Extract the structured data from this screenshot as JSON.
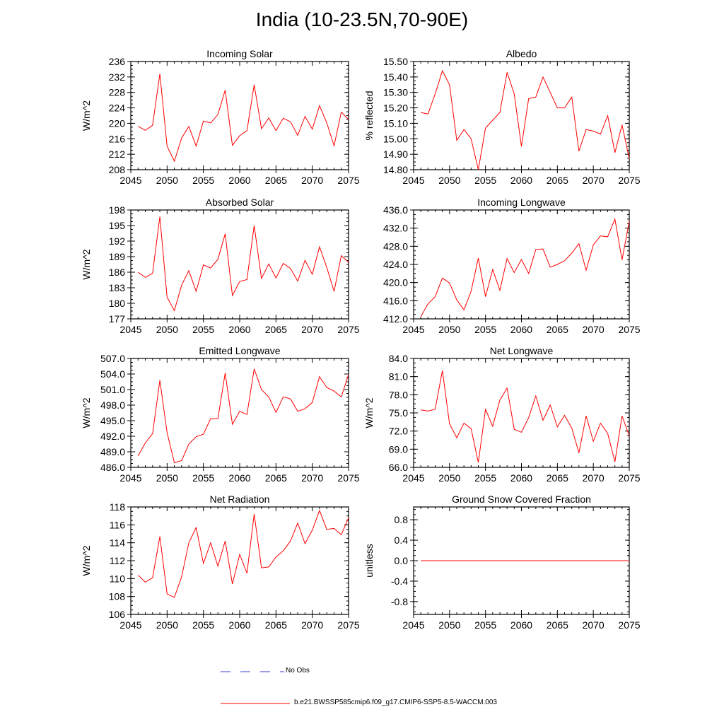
{
  "figure": {
    "title": "India (10-23.5N,70-90E)",
    "legend": [
      {
        "label": "No Obs",
        "color": "#3b3bdb",
        "style": "dashed"
      },
      {
        "label": "b.e21.BWSSP585cmip6.f09_g17.CMIP6-SSP5-8.5-WACCM.003",
        "color": "#ff0000",
        "style": "solid"
      }
    ]
  },
  "chart_data": [
    {
      "type": "line",
      "title": "Incoming Solar",
      "ylabel": "W/m^2",
      "xlim": [
        2045,
        2075
      ],
      "ylim": [
        208,
        236
      ],
      "yticks": [
        "208",
        "212",
        "216",
        "220",
        "224",
        "228",
        "232",
        "236"
      ],
      "xticks": [
        "2045",
        "2050",
        "2055",
        "2060",
        "2065",
        "2070",
        "2075"
      ],
      "grid": false,
      "series": [
        {
          "color": "#ff0000",
          "x": [
            2046,
            2047,
            2048,
            2049,
            2050,
            2051,
            2052,
            2053,
            2054,
            2055,
            2056,
            2057,
            2058,
            2059,
            2060,
            2061,
            2062,
            2063,
            2064,
            2065,
            2066,
            2067,
            2068,
            2069,
            2070,
            2071,
            2072,
            2073,
            2074,
            2075
          ],
          "values": [
            219.2,
            218.2,
            219.5,
            232.8,
            214.1,
            210.2,
            216.2,
            219.2,
            214.1,
            220.6,
            220.1,
            222.3,
            228.6,
            214.3,
            216.8,
            218.1,
            230.0,
            218.6,
            221.4,
            218.1,
            221.3,
            220.4,
            216.9,
            221.8,
            218.5,
            224.6,
            220.1,
            214.2,
            222.9,
            221.0
          ]
        }
      ]
    },
    {
      "type": "line",
      "title": "Albedo",
      "ylabel": "% reflected",
      "xlim": [
        2045,
        2075
      ],
      "ylim": [
        14.8,
        15.5
      ],
      "yticks": [
        "14.80",
        "14.90",
        "15.00",
        "15.10",
        "15.20",
        "15.30",
        "15.40",
        "15.50"
      ],
      "xticks": [
        "2045",
        "2050",
        "2055",
        "2060",
        "2065",
        "2070",
        "2075"
      ],
      "grid": false,
      "series": [
        {
          "color": "#ff0000",
          "x": [
            2046,
            2047,
            2048,
            2049,
            2050,
            2051,
            2052,
            2053,
            2054,
            2055,
            2056,
            2057,
            2058,
            2059,
            2060,
            2061,
            2062,
            2063,
            2064,
            2065,
            2066,
            2067,
            2068,
            2069,
            2070,
            2071,
            2072,
            2073,
            2074,
            2075
          ],
          "values": [
            15.17,
            15.16,
            15.29,
            15.44,
            15.35,
            14.99,
            15.06,
            15.0,
            14.8,
            15.07,
            15.12,
            15.17,
            15.43,
            15.29,
            14.95,
            15.26,
            15.27,
            15.4,
            15.3,
            15.2,
            15.2,
            15.27,
            14.92,
            15.06,
            15.05,
            15.03,
            15.15,
            14.91,
            15.09,
            14.87
          ]
        }
      ]
    },
    {
      "type": "line",
      "title": "Absorbed Solar",
      "ylabel": "W/m^2",
      "xlim": [
        2045,
        2075
      ],
      "ylim": [
        177,
        198
      ],
      "yticks": [
        "177",
        "180",
        "183",
        "186",
        "189",
        "192",
        "195",
        "198"
      ],
      "xticks": [
        "2045",
        "2050",
        "2055",
        "2060",
        "2065",
        "2070",
        "2075"
      ],
      "grid": false,
      "series": [
        {
          "color": "#ff0000",
          "x": [
            2046,
            2047,
            2048,
            2049,
            2050,
            2051,
            2052,
            2053,
            2054,
            2055,
            2056,
            2057,
            2058,
            2059,
            2060,
            2061,
            2062,
            2063,
            2064,
            2065,
            2066,
            2067,
            2068,
            2069,
            2070,
            2071,
            2072,
            2073,
            2074,
            2075
          ],
          "values": [
            186.0,
            185.0,
            185.8,
            196.7,
            181.2,
            178.6,
            183.5,
            186.3,
            182.3,
            187.4,
            186.8,
            188.5,
            193.4,
            181.5,
            184.2,
            184.6,
            195.0,
            184.8,
            187.6,
            184.9,
            187.7,
            186.7,
            184.3,
            188.3,
            185.6,
            190.9,
            186.9,
            182.3,
            189.2,
            187.9
          ]
        }
      ]
    },
    {
      "type": "line",
      "title": "Incoming Longwave",
      "ylabel": "",
      "xlim": [
        2045,
        2075
      ],
      "ylim": [
        412.0,
        436.0
      ],
      "yticks": [
        "412.0",
        "416.0",
        "420.0",
        "424.0",
        "428.0",
        "432.0",
        "436.0"
      ],
      "xticks": [
        "2045",
        "2050",
        "2055",
        "2060",
        "2065",
        "2070",
        "2075"
      ],
      "grid": false,
      "series": [
        {
          "color": "#ff0000",
          "x": [
            2046,
            2047,
            2048,
            2049,
            2050,
            2051,
            2052,
            2053,
            2054,
            2055,
            2056,
            2057,
            2058,
            2059,
            2060,
            2061,
            2062,
            2063,
            2064,
            2065,
            2066,
            2067,
            2068,
            2069,
            2070,
            2071,
            2072,
            2073,
            2074,
            2075
          ],
          "values": [
            412.5,
            415.3,
            416.9,
            421.0,
            419.9,
            416.2,
            414.0,
            418.1,
            425.4,
            416.9,
            422.9,
            418.3,
            425.3,
            422.2,
            425.1,
            422.0,
            427.3,
            427.4,
            423.4,
            424.0,
            424.8,
            426.5,
            428.6,
            422.7,
            428.3,
            430.3,
            430.1,
            434.0,
            425.0,
            433.5
          ]
        }
      ]
    },
    {
      "type": "line",
      "title": "Emitted Longwave",
      "ylabel": "W/m^2",
      "xlim": [
        2045,
        2075
      ],
      "ylim": [
        486.0,
        507.0
      ],
      "yticks": [
        "486.0",
        "489.0",
        "492.0",
        "495.0",
        "498.0",
        "501.0",
        "504.0",
        "507.0"
      ],
      "xticks": [
        "2045",
        "2050",
        "2055",
        "2060",
        "2065",
        "2070",
        "2075"
      ],
      "grid": false,
      "series": [
        {
          "color": "#ff0000",
          "x": [
            2046,
            2047,
            2048,
            2049,
            2050,
            2051,
            2052,
            2053,
            2054,
            2055,
            2056,
            2057,
            2058,
            2059,
            2060,
            2061,
            2062,
            2063,
            2064,
            2065,
            2066,
            2067,
            2068,
            2069,
            2070,
            2071,
            2072,
            2073,
            2074,
            2075
          ],
          "values": [
            488.2,
            490.7,
            492.5,
            502.8,
            492.7,
            486.9,
            487.3,
            490.5,
            491.9,
            492.4,
            495.4,
            495.4,
            504.2,
            494.3,
            496.8,
            496.2,
            505.0,
            501.0,
            499.6,
            496.6,
            499.6,
            499.2,
            496.8,
            497.3,
            498.5,
            503.5,
            501.4,
            500.7,
            499.6,
            503.9
          ]
        }
      ]
    },
    {
      "type": "line",
      "title": "Net Longwave",
      "ylabel": "W/m^2",
      "xlim": [
        2045,
        2075
      ],
      "ylim": [
        66.0,
        84.0
      ],
      "yticks": [
        "66.0",
        "69.0",
        "72.0",
        "75.0",
        "78.0",
        "81.0",
        "84.0"
      ],
      "xticks": [
        "2045",
        "2050",
        "2055",
        "2060",
        "2065",
        "2070",
        "2075"
      ],
      "grid": false,
      "series": [
        {
          "color": "#ff0000",
          "x": [
            2046,
            2047,
            2048,
            2049,
            2050,
            2051,
            2052,
            2053,
            2054,
            2055,
            2056,
            2057,
            2058,
            2059,
            2060,
            2061,
            2062,
            2063,
            2064,
            2065,
            2066,
            2067,
            2068,
            2069,
            2070,
            2071,
            2072,
            2073,
            2074,
            2075
          ],
          "values": [
            75.5,
            75.3,
            75.6,
            82.0,
            73.2,
            70.9,
            73.3,
            72.4,
            66.8,
            75.6,
            72.8,
            77.1,
            79.1,
            72.3,
            71.8,
            74.2,
            77.8,
            73.8,
            76.3,
            72.7,
            74.6,
            72.5,
            68.4,
            74.5,
            70.3,
            73.3,
            71.6,
            66.9,
            74.5,
            71.2
          ]
        }
      ]
    },
    {
      "type": "line",
      "title": "Net Radiation",
      "ylabel": "W/m^2",
      "xlim": [
        2045,
        2075
      ],
      "ylim": [
        106,
        118
      ],
      "yticks": [
        "106",
        "108",
        "110",
        "112",
        "114",
        "116",
        "118"
      ],
      "xticks": [
        "2045",
        "2050",
        "2055",
        "2060",
        "2065",
        "2070",
        "2075"
      ],
      "grid": false,
      "series": [
        {
          "color": "#ff0000",
          "x": [
            2046,
            2047,
            2048,
            2049,
            2050,
            2051,
            2052,
            2053,
            2054,
            2055,
            2056,
            2057,
            2058,
            2059,
            2060,
            2061,
            2062,
            2063,
            2064,
            2065,
            2066,
            2067,
            2068,
            2069,
            2070,
            2071,
            2072,
            2073,
            2074,
            2075
          ],
          "values": [
            110.4,
            109.6,
            110.1,
            114.7,
            108.3,
            107.9,
            110.2,
            114.0,
            115.7,
            111.7,
            114.0,
            111.4,
            114.2,
            109.4,
            112.7,
            110.6,
            117.2,
            111.2,
            111.3,
            112.4,
            113.1,
            114.2,
            116.2,
            113.9,
            115.4,
            117.6,
            115.5,
            115.6,
            114.9,
            116.8
          ]
        }
      ]
    },
    {
      "type": "line",
      "title": "Ground Snow Covered Fraction",
      "ylabel": "unitless",
      "xlim": [
        2045,
        2075
      ],
      "ylim": [
        -1.05,
        1.05
      ],
      "yticks": [
        "-0.8",
        "-0.4",
        "0.0",
        "0.4",
        "0.8"
      ],
      "xticks": [
        "2045",
        "2050",
        "2055",
        "2060",
        "2065",
        "2070",
        "2075"
      ],
      "grid": false,
      "series": [
        {
          "color": "#ff0000",
          "x": [
            2046,
            2047,
            2048,
            2049,
            2050,
            2051,
            2052,
            2053,
            2054,
            2055,
            2056,
            2057,
            2058,
            2059,
            2060,
            2061,
            2062,
            2063,
            2064,
            2065,
            2066,
            2067,
            2068,
            2069,
            2070,
            2071,
            2072,
            2073,
            2074,
            2075
          ],
          "values": [
            0,
            0,
            0,
            0,
            0,
            0,
            0,
            0,
            0,
            0,
            0,
            0,
            0,
            0,
            0,
            0,
            0,
            0,
            0,
            0,
            0,
            0,
            0,
            0,
            0,
            0,
            0,
            0,
            0,
            0
          ]
        }
      ]
    }
  ]
}
